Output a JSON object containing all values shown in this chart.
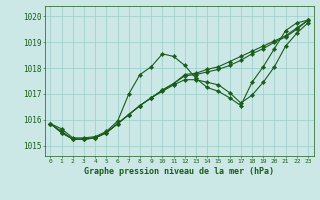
{
  "title": "Graphe pression niveau de la mer (hPa)",
  "bg_color": "#cce8e6",
  "grid_color": "#99ccca",
  "line_color": "#1a5c1a",
  "xlim": [
    -0.5,
    23.5
  ],
  "ylim": [
    1014.6,
    1020.4
  ],
  "yticks": [
    1015,
    1016,
    1017,
    1018,
    1019,
    1020
  ],
  "xticks": [
    0,
    1,
    2,
    3,
    4,
    5,
    6,
    7,
    8,
    9,
    10,
    11,
    12,
    13,
    14,
    15,
    16,
    17,
    18,
    19,
    20,
    21,
    22,
    23
  ],
  "series": [
    [
      1015.85,
      1015.65,
      1015.3,
      1015.3,
      1015.35,
      1015.55,
      1015.95,
      1017.0,
      1017.75,
      1018.05,
      1018.55,
      1018.45,
      1018.1,
      1017.6,
      1017.25,
      1017.1,
      1016.85,
      1016.55,
      1017.45,
      1018.05,
      1018.75,
      1019.45,
      1019.75,
      1019.85
    ],
    [
      1015.85,
      1015.55,
      1015.25,
      1015.25,
      1015.3,
      1015.5,
      1015.85,
      1016.2,
      1016.55,
      1016.85,
      1017.1,
      1017.35,
      1017.55,
      1017.55,
      1017.45,
      1017.35,
      1017.05,
      1016.65,
      1016.95,
      1017.45,
      1018.05,
      1018.85,
      1019.35,
      1019.75
    ],
    [
      1015.85,
      1015.5,
      1015.25,
      1015.25,
      1015.3,
      1015.5,
      1015.85,
      1016.2,
      1016.55,
      1016.85,
      1017.15,
      1017.4,
      1017.75,
      1017.8,
      1017.95,
      1018.05,
      1018.25,
      1018.45,
      1018.65,
      1018.85,
      1019.05,
      1019.25,
      1019.55,
      1019.85
    ],
    [
      1015.85,
      1015.5,
      1015.25,
      1015.25,
      1015.3,
      1015.5,
      1015.85,
      1016.2,
      1016.55,
      1016.85,
      1017.15,
      1017.4,
      1017.7,
      1017.75,
      1017.85,
      1017.95,
      1018.1,
      1018.3,
      1018.55,
      1018.75,
      1019.0,
      1019.2,
      1019.5,
      1019.85
    ]
  ]
}
